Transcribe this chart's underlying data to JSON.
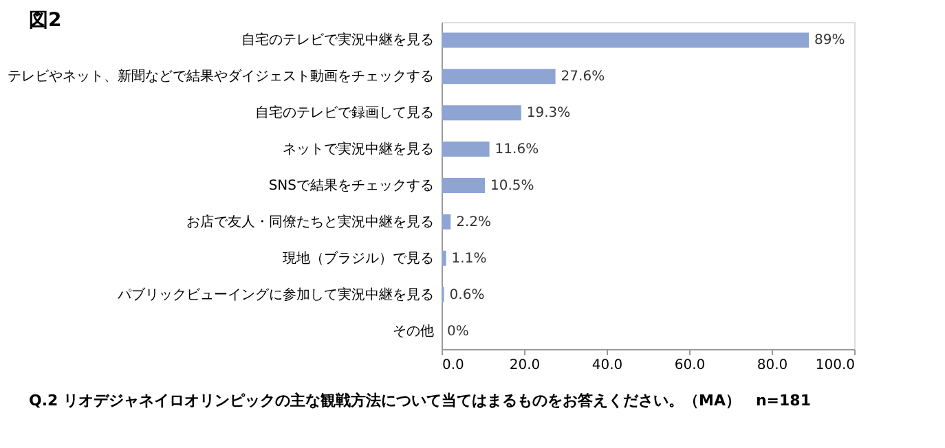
{
  "chart_data": {
    "type": "bar",
    "orientation": "horizontal",
    "title": "図2",
    "categories": [
      "自宅のテレビで実況中継を見る",
      "テレビやネット、新聞などで結果やダイジェスト動画をチェックする",
      "自宅のテレビで録画して見る",
      "ネットで実況中継を見る",
      "SNSで結果をチェックする",
      "お店で友人・同僚たちと実況中継を見る",
      "現地（ブラジル）で見る",
      "パブリックビューイングに参加して実況中継を見る",
      "その他"
    ],
    "values": [
      89,
      27.6,
      19.3,
      11.6,
      10.5,
      2.2,
      1.1,
      0.6,
      0
    ],
    "value_labels": [
      "89%",
      "27.6%",
      "19.3%",
      "11.6%",
      "10.5%",
      "2.2%",
      "1.1%",
      "0.6%",
      "0%"
    ],
    "color": "#8ea4d2",
    "xlim": [
      0,
      100
    ],
    "xticks": [
      {
        "value": 0,
        "label": "0.0"
      },
      {
        "value": 20,
        "label": "20.0"
      },
      {
        "value": 40,
        "label": "40.0"
      },
      {
        "value": 60,
        "label": "60.0"
      },
      {
        "value": 80,
        "label": "80.0"
      },
      {
        "value": 100,
        "label": "100.0"
      }
    ],
    "grid": false,
    "annotations": [
      "Q.2 リオデジャネイロオリンピックの主な観戦方法について当てはまるものをお答えください。（MA）　n=181"
    ]
  }
}
